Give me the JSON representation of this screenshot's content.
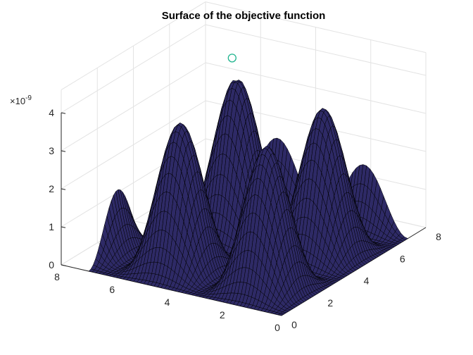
{
  "chart_data": {
    "type": "surface",
    "title": "Surface of the objective function",
    "xlabel": "",
    "ylabel": "",
    "zlabel": "",
    "x_range": [
      0,
      8
    ],
    "y_range": [
      0,
      8
    ],
    "z_range": [
      0,
      4
    ],
    "z_exponent_label": "×10",
    "z_exponent_power": "-9",
    "x_ticks": [
      "0",
      "2",
      "4",
      "6",
      "8"
    ],
    "y_ticks": [
      "0",
      "2",
      "4",
      "6",
      "8"
    ],
    "z_ticks": [
      "0",
      "1",
      "2",
      "3",
      "4"
    ],
    "grid": true,
    "surface_model": "z = a * (sin(x))^2 * (sin(y))^2 * (1 + 0.08*x*y/64)",
    "surface_peak_z": 4,
    "surface_x_domain": [
      0,
      7
    ],
    "surface_y_domain": [
      0,
      7
    ],
    "colors": {
      "surface": "#2e2a66",
      "mesh": "#000000",
      "marker": "#20b48e"
    },
    "marker": {
      "shape": "circle-open",
      "x": 5.2,
      "y": 5.2,
      "z": 4.4
    }
  }
}
